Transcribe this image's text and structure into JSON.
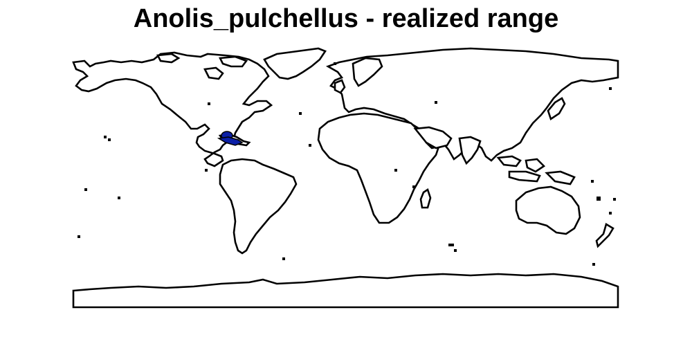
{
  "title": "Anolis_pulchellus - realized range",
  "map": {
    "projection": "equirectangular",
    "land_fill": "#ffffff",
    "outline_color": "#000000",
    "range_fill": "#0b1fa6"
  }
}
